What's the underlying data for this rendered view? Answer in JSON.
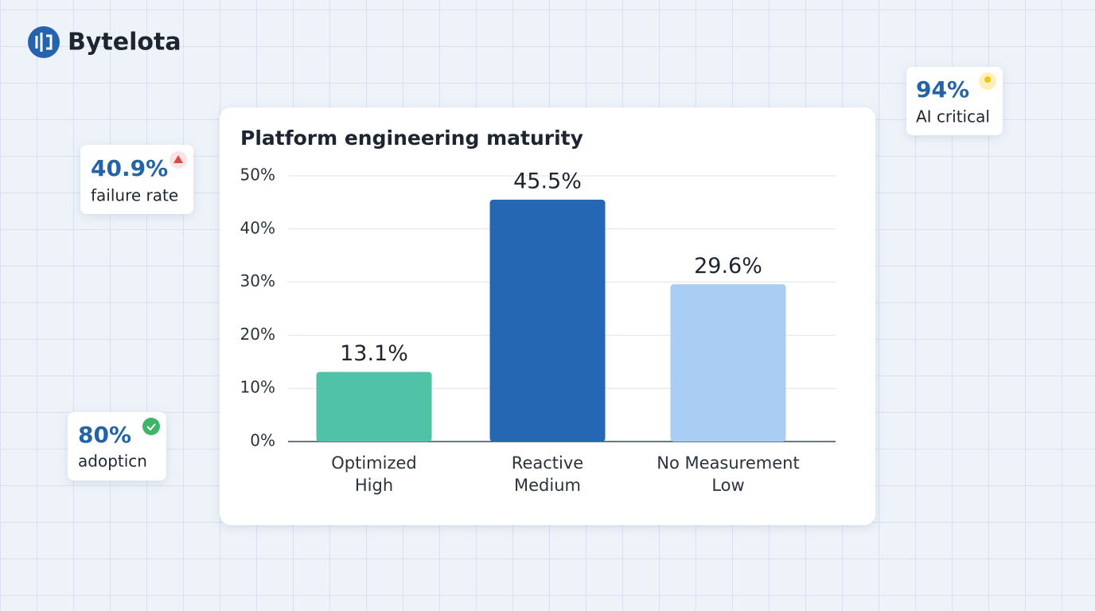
{
  "brand": {
    "name": "Bytelota"
  },
  "stats": [
    {
      "value": "40.9%",
      "label": "failure rate"
    },
    {
      "value": "80%",
      "label": "adopticn"
    },
    {
      "value": "94%",
      "label": "AI critical"
    }
  ],
  "chart_data": {
    "type": "bar",
    "title": "Platform engineering maturity",
    "categories": [
      [
        "Optimized",
        "High"
      ],
      [
        "Reactive",
        "Medium"
      ],
      [
        "No Measurement",
        "Low"
      ]
    ],
    "values": [
      13.1,
      45.5,
      29.6
    ],
    "value_labels": [
      "13.1%",
      "45.5%",
      "29.6%"
    ],
    "colors": [
      "#4fc2a7",
      "#2567b3",
      "#a9cdf3"
    ],
    "ylim": [
      0,
      50
    ],
    "yticks": [
      {
        "value": 0,
        "label": "0%"
      },
      {
        "value": 10,
        "label": "10%"
      },
      {
        "value": 20,
        "label": "20%"
      },
      {
        "value": 30,
        "label": "30%"
      },
      {
        "value": 40,
        "label": "40%"
      },
      {
        "value": 50,
        "label": "50%"
      }
    ],
    "grid": true
  }
}
